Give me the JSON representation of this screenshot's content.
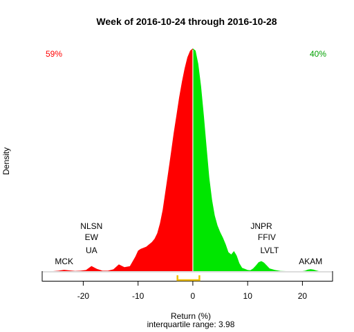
{
  "chart_data": {
    "type": "area",
    "title": "Week of 2016-10-24 through 2016-10-28",
    "xlabel": "Return (%)",
    "sublabel": "interquartile range: 3.98",
    "ylabel": "Density",
    "xlim": [
      -27.5,
      25.5
    ],
    "xticks": [
      -20,
      -10,
      0,
      10,
      20
    ],
    "xtick_labels": [
      "-20",
      "-10",
      "0",
      "10",
      "20"
    ],
    "neg_pct": "59%",
    "pos_pct": "40%",
    "colors": {
      "negative": "#ff0000",
      "positive": "#00e600",
      "iqr": "#f0c000",
      "divider": "#ffffff"
    },
    "iqr": [
      -2.8,
      1.2
    ],
    "density": {
      "x": [
        -25.5,
        -24.5,
        -23.5,
        -22.5,
        -21.5,
        -20.5,
        -19.5,
        -18.5,
        -17.5,
        -16.5,
        -15.5,
        -14.5,
        -13.5,
        -12.5,
        -11.5,
        -10.5,
        -10,
        -9.5,
        -9,
        -8.5,
        -8,
        -7.5,
        -7,
        -6.5,
        -6,
        -5.5,
        -5,
        -4.5,
        -4,
        -3.5,
        -3,
        -2.5,
        -2,
        -1.5,
        -1,
        -0.5,
        0,
        0.5,
        1,
        1.5,
        2,
        2.5,
        3,
        3.5,
        4,
        4.5,
        5,
        5.5,
        6,
        6.5,
        7,
        7.5,
        8,
        8.5,
        9,
        9.5,
        10,
        10.5,
        11,
        11.5,
        12,
        12.5,
        13,
        13.5,
        14,
        15,
        16,
        17,
        18,
        19,
        20,
        20.5,
        21,
        21.5,
        22,
        22.5,
        23
      ],
      "y": [
        0,
        0.002,
        0.006,
        0.003,
        0.001,
        0.002,
        0.005,
        0.023,
        0.01,
        0.002,
        0.002,
        0.008,
        0.03,
        0.018,
        0.022,
        0.065,
        0.092,
        0.1,
        0.105,
        0.11,
        0.12,
        0.13,
        0.145,
        0.17,
        0.215,
        0.275,
        0.36,
        0.445,
        0.53,
        0.62,
        0.7,
        0.78,
        0.85,
        0.91,
        0.96,
        0.99,
        1.0,
        0.99,
        0.93,
        0.83,
        0.7,
        0.56,
        0.42,
        0.32,
        0.25,
        0.205,
        0.175,
        0.15,
        0.12,
        0.085,
        0.075,
        0.09,
        0.07,
        0.035,
        0.015,
        0.01,
        0.005,
        0.004,
        0.012,
        0.025,
        0.04,
        0.045,
        0.038,
        0.025,
        0.012,
        0.005,
        0.001,
        0,
        0,
        0,
        0,
        0.002,
        0.007,
        0.009,
        0.007,
        0.003,
        0
      ]
    },
    "peak_density_px": 322,
    "annotations": [
      {
        "label": "NLSN",
        "x": -18.5,
        "row": 3
      },
      {
        "label": "EW",
        "x": -18.5,
        "row": 2
      },
      {
        "label": "UA",
        "x": -18.5,
        "row": 1
      },
      {
        "label": "MCK",
        "x": -23.5,
        "row": 0
      },
      {
        "label": "JNPR",
        "x": 12.5,
        "row": 3
      },
      {
        "label": "FFIV",
        "x": 13.5,
        "row": 2
      },
      {
        "label": "LVLT",
        "x": 14,
        "row": 1
      },
      {
        "label": "AKAM",
        "x": 21.5,
        "row": 0
      }
    ]
  }
}
